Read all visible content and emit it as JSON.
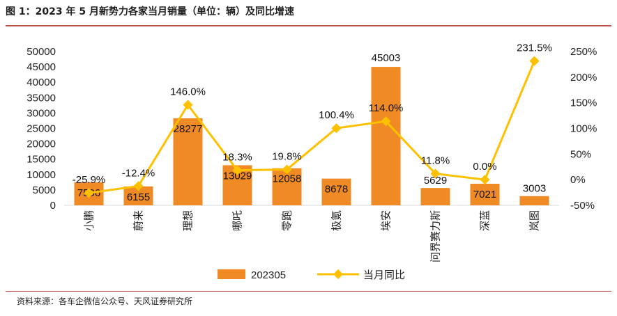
{
  "header": {
    "title": "图 1：2023 年 5 月新势力各家当月销量（单位：辆）及同比增速"
  },
  "footer": {
    "source": "资料来源：各车企微信公众号、天风证券研究所"
  },
  "colors": {
    "bar": "#f08a24",
    "line": "#ffc000",
    "rule": "#c0504d"
  },
  "chart_data": {
    "type": "bar",
    "title": "",
    "categories": [
      "小鹏",
      "蔚来",
      "理想",
      "哪吒",
      "零跑",
      "极氪",
      "埃安",
      "问界赛力斯",
      "深蓝",
      "岚图"
    ],
    "series": [
      {
        "name": "202305",
        "type": "bar",
        "axis": "left",
        "values": [
          7506,
          6155,
          28277,
          13029,
          12058,
          8678,
          45003,
          5629,
          7021,
          3003
        ],
        "labels": [
          "7506",
          "6155",
          "28277",
          "13029",
          "12058",
          "8678",
          "45003",
          "5629",
          "7021",
          "3003"
        ]
      },
      {
        "name": "当月同比",
        "type": "line",
        "axis": "right",
        "values": [
          -25.9,
          -12.4,
          146.0,
          18.3,
          19.8,
          100.4,
          114.0,
          11.8,
          0.0,
          231.5
        ],
        "labels": [
          "-25.9%",
          "-12.4%",
          "146.0%",
          "18.3%",
          "19.8%",
          "100.4%",
          "114.0%",
          "11.8%",
          "0.0%",
          "231.5%"
        ]
      }
    ],
    "y_left": {
      "range": [
        0,
        50000
      ],
      "ticks": [
        0,
        5000,
        10000,
        15000,
        20000,
        25000,
        30000,
        35000,
        40000,
        45000,
        50000
      ],
      "tick_labels": [
        "0",
        "5000",
        "10000",
        "15000",
        "20000",
        "25000",
        "30000",
        "35000",
        "40000",
        "45000",
        "50000"
      ]
    },
    "y_right": {
      "range": [
        -50,
        250
      ],
      "ticks": [
        -50,
        0,
        50,
        100,
        150,
        200,
        250
      ],
      "tick_labels": [
        "-50%",
        "0%",
        "50%",
        "100%",
        "150%",
        "200%",
        "250%"
      ]
    },
    "legend_position": "bottom",
    "grid": false
  }
}
